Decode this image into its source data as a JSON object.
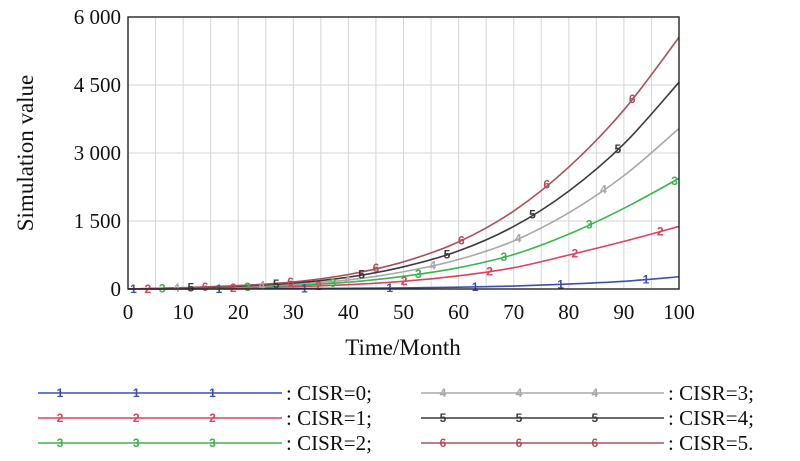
{
  "chart_data": {
    "type": "line",
    "xlabel": "Time/Month",
    "ylabel": "Simulation value",
    "xlim": [
      0,
      100
    ],
    "ylim": [
      0,
      6000
    ],
    "x_ticks": [
      0,
      10,
      20,
      30,
      40,
      50,
      60,
      70,
      80,
      90,
      100
    ],
    "x_tick_labels": [
      "0",
      "10",
      "20",
      "30",
      "40",
      "50",
      "60",
      "70",
      "80",
      "90",
      "100"
    ],
    "y_ticks": [
      0,
      1500,
      3000,
      4500,
      6000
    ],
    "y_tick_labels": [
      "0",
      "1 500",
      "3 000",
      "4 500",
      "6 000"
    ],
    "grid": true,
    "legend_position": "bottom",
    "x": [
      0,
      10,
      20,
      30,
      40,
      50,
      60,
      70,
      80,
      90,
      100
    ],
    "series": [
      {
        "name": "CISR=0;",
        "marker": "1",
        "color": "#3c4fb0",
        "values": [
          0,
          0,
          5,
          10,
          15,
          25,
          40,
          65,
          110,
          170,
          270
        ]
      },
      {
        "name": "CISR=1;",
        "marker": "2",
        "color": "#e0405a",
        "values": [
          0,
          10,
          25,
          50,
          95,
          170,
          290,
          470,
          750,
          1050,
          1380
        ]
      },
      {
        "name": "CISR=2;",
        "marker": "3",
        "color": "#3cb54a",
        "values": [
          0,
          15,
          40,
          80,
          150,
          280,
          470,
          760,
          1210,
          1780,
          2440
        ]
      },
      {
        "name": "CISR=3;",
        "marker": "4",
        "color": "#a8a8a8",
        "values": [
          0,
          20,
          50,
          105,
          200,
          380,
          650,
          1060,
          1680,
          2500,
          3540
        ]
      },
      {
        "name": "CISR=4;",
        "marker": "5",
        "color": "#3a3a3a",
        "values": [
          0,
          25,
          60,
          130,
          260,
          490,
          840,
          1380,
          2160,
          3200,
          4560
        ]
      },
      {
        "name": "CISR=5.",
        "marker": "6",
        "color": "#a8505c",
        "values": [
          0,
          30,
          75,
          155,
          320,
          600,
          1040,
          1720,
          2690,
          3950,
          5550
        ]
      }
    ]
  }
}
